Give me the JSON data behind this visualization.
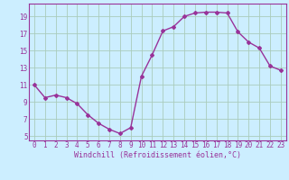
{
  "x": [
    0,
    1,
    2,
    3,
    4,
    5,
    6,
    7,
    8,
    9,
    10,
    11,
    12,
    13,
    14,
    15,
    16,
    17,
    18,
    19,
    20,
    21,
    22,
    23
  ],
  "y": [
    11,
    9.5,
    9.8,
    9.5,
    8.8,
    7.5,
    6.5,
    5.8,
    5.3,
    6.0,
    12.0,
    14.5,
    17.3,
    17.8,
    19.0,
    19.4,
    19.5,
    19.5,
    19.4,
    17.2,
    16.0,
    15.3,
    13.2,
    12.7
  ],
  "line_color": "#993399",
  "marker": "D",
  "marker_size": 2,
  "bg_color": "#cceeff",
  "grid_color": "#aaccbb",
  "xlabel": "Windchill (Refroidissement éolien,°C)",
  "xlim": [
    -0.5,
    23.5
  ],
  "ylim": [
    4.5,
    20.5
  ],
  "yticks": [
    5,
    7,
    9,
    11,
    13,
    15,
    17,
    19
  ],
  "xticks": [
    0,
    1,
    2,
    3,
    4,
    5,
    6,
    7,
    8,
    9,
    10,
    11,
    12,
    13,
    14,
    15,
    16,
    17,
    18,
    19,
    20,
    21,
    22,
    23
  ],
  "tick_label_color": "#993399",
  "label_color": "#993399",
  "font_size": 5.5,
  "label_font_size": 6,
  "line_width": 1.0
}
